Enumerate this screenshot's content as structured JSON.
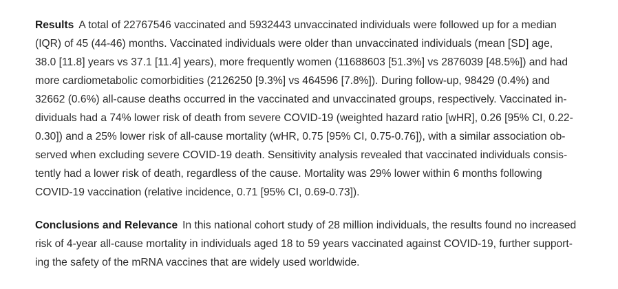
{
  "results": {
    "heading": "Results",
    "lines": [
      "A total of 22767546 vaccinated and 5932443 unvaccinated individuals were followed up for a median",
      "(IQR) of 45 (44-46) months. Vaccinated individuals were older than unvaccinated individuals (mean [SD] age,",
      "38.0 [11.8] years vs 37.1 [11.4] years), more frequently women (11688603 [51.3%] vs 2876039 [48.5%]) and had",
      "more cardiometabolic comorbidities (2126250 [9.3%] vs 464596 [7.8%]). During follow-up, 98429 (0.4%) and",
      "32662 (0.6%) all-cause deaths occurred in the vaccinated and unvaccinated groups, respectively. Vaccinated in-",
      "dividuals had a 74% lower risk of death from severe COVID-19 (weighted hazard ratio [wHR], 0.26 [95% CI, 0.22-",
      "0.30]) and a 25% lower risk of all-cause mortality (wHR, 0.75 [95% CI, 0.75-0.76]), with a similar association ob-",
      "served when excluding severe COVID-19 death. Sensitivity analysis revealed that vaccinated individuals consis-",
      "tently had a lower risk of death, regardless of the cause. Mortality was 29% lower within 6 months following",
      "COVID-19 vaccination (relative incidence, 0.71 [95% CI, 0.69-0.73])."
    ]
  },
  "conclusions": {
    "heading": "Conclusions and Relevance",
    "lines": [
      "In this national cohort study of 28 million individuals, the results found no increased",
      "risk of 4-year all-cause mortality in individuals aged 18 to 59 years vaccinated against COVID-19, further support-",
      "ing the safety of the mRNA vaccines that are widely used worldwide."
    ]
  }
}
